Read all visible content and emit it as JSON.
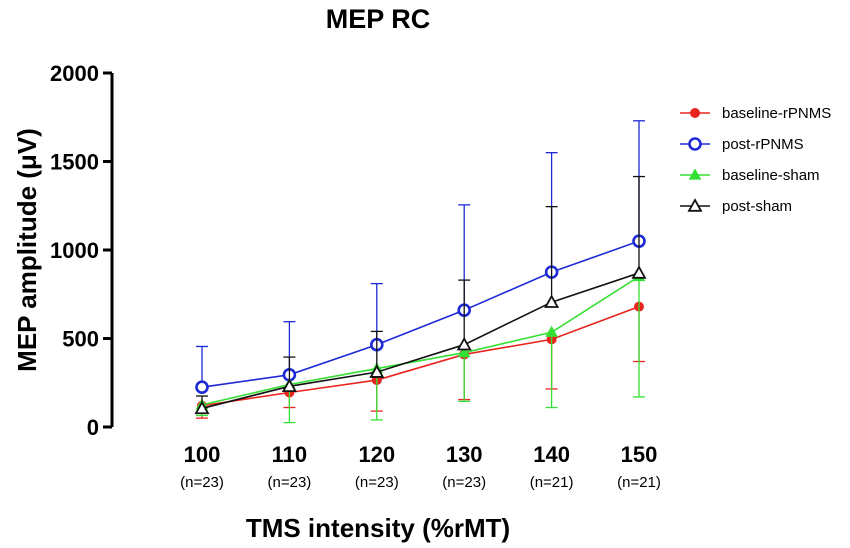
{
  "chart_data": {
    "type": "line",
    "title": "MEP RC",
    "xlabel": "TMS intensity (%rMT)",
    "ylabel": "MEP amplitude (μV)",
    "ylim": [
      0,
      2000
    ],
    "yticks": [
      0,
      500,
      1000,
      1500,
      2000
    ],
    "categories": [
      "100",
      "110",
      "120",
      "130",
      "140",
      "150"
    ],
    "sublabels": [
      "(n=23)",
      "(n=23)",
      "(n=23)",
      "(n=23)",
      "(n=21)",
      "(n=21)"
    ],
    "legend_position": "top-right",
    "series": [
      {
        "name": "baseline-rPNMS",
        "color": "#e8251f",
        "marker": "filled-circle",
        "values": [
          120,
          195,
          265,
          410,
          495,
          680
        ],
        "error_low": [
          70,
          85,
          175,
          255,
          280,
          310
        ],
        "error_high": [
          0,
          0,
          0,
          0,
          0,
          0
        ]
      },
      {
        "name": "post-rPNMS",
        "color": "#1d2ad6",
        "marker": "open-circle",
        "values": [
          225,
          295,
          465,
          660,
          875,
          1050
        ],
        "error_low": [
          0,
          0,
          0,
          0,
          0,
          0
        ],
        "error_high": [
          230,
          300,
          345,
          595,
          675,
          680
        ]
      },
      {
        "name": "baseline-sham",
        "color": "#33e033",
        "marker": "filled-triangle",
        "values": [
          125,
          240,
          330,
          420,
          535,
          850
        ],
        "error_low": [
          60,
          215,
          290,
          275,
          425,
          680
        ],
        "error_high": [
          0,
          0,
          0,
          0,
          0,
          0
        ]
      },
      {
        "name": "post-sham",
        "color": "#111111",
        "marker": "open-triangle",
        "values": [
          105,
          230,
          310,
          465,
          705,
          870
        ],
        "error_low": [
          0,
          0,
          0,
          0,
          0,
          0
        ],
        "error_high": [
          70,
          165,
          230,
          365,
          540,
          545
        ]
      }
    ]
  }
}
